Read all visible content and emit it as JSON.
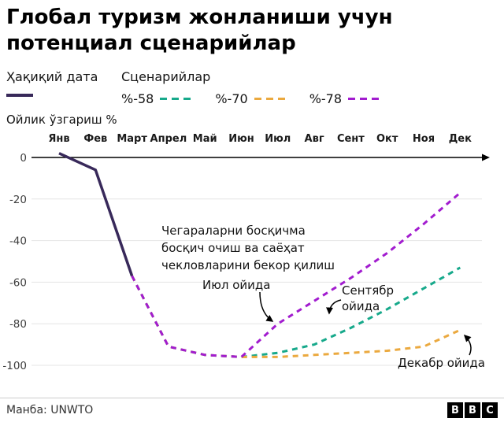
{
  "title": "Глобал туризм жонланиши учун\nпотенциал сценарийлар",
  "legend": {
    "actual_label": "Ҳақиқий дата",
    "scenarios_label": "Сценарийлар",
    "actual_color": "#38295A",
    "scenarios": [
      {
        "label": "%-58",
        "color": "#17A98B"
      },
      {
        "label": "%-70",
        "color": "#EBA93F"
      },
      {
        "label": "%-78",
        "color": "#A21CCF"
      }
    ]
  },
  "chart_data": {
    "type": "line",
    "title": "Глобал туризм жонланиши учун потенциал сценарийлар",
    "ylabel": "Ойлик ўзгариш %",
    "xlabel": "",
    "categories": [
      "Янв",
      "Фев",
      "Март",
      "Апрел",
      "Май",
      "Июн",
      "Июл",
      "Авг",
      "Сент",
      "Окт",
      "Ноя",
      "Дек"
    ],
    "y_ticks": [
      0,
      -20,
      -40,
      -60,
      -80,
      -100
    ],
    "ylim": [
      -100,
      5
    ],
    "grid": true,
    "legend_position": "top",
    "series": [
      {
        "name": "Ҳақиқий дата",
        "style": "solid",
        "color": "#38295A",
        "values": [
          2,
          -6,
          -57,
          null,
          null,
          null,
          null,
          null,
          null,
          null,
          null,
          null
        ]
      },
      {
        "name": "%-58",
        "style": "dashed",
        "color": "#17A98B",
        "values": [
          null,
          null,
          -57,
          -91,
          -95,
          -96,
          -94,
          -90,
          -82,
          -73,
          -63,
          -53
        ]
      },
      {
        "name": "%-70",
        "style": "dashed",
        "color": "#EBA93F",
        "values": [
          null,
          null,
          -57,
          -91,
          -95,
          -96,
          -96,
          -95,
          -94,
          -93,
          -91,
          -83
        ]
      },
      {
        "name": "%-78",
        "style": "dashed",
        "color": "#A21CCF",
        "values": [
          null,
          null,
          -57,
          -91,
          -95,
          -96,
          -80,
          -69,
          -58,
          -46,
          -32,
          -17
        ]
      }
    ]
  },
  "annotations": {
    "restrictions": "Чегараларни босқичма\nбосқич очиш ва саёҳат\nчекловларини бекор қилиш",
    "july": "Июл ойида",
    "september": "Сентябр\nойида",
    "december": "Декабр ойида"
  },
  "footer": {
    "source": "Манба: UNWTO",
    "logo_letters": [
      "B",
      "B",
      "C"
    ]
  }
}
